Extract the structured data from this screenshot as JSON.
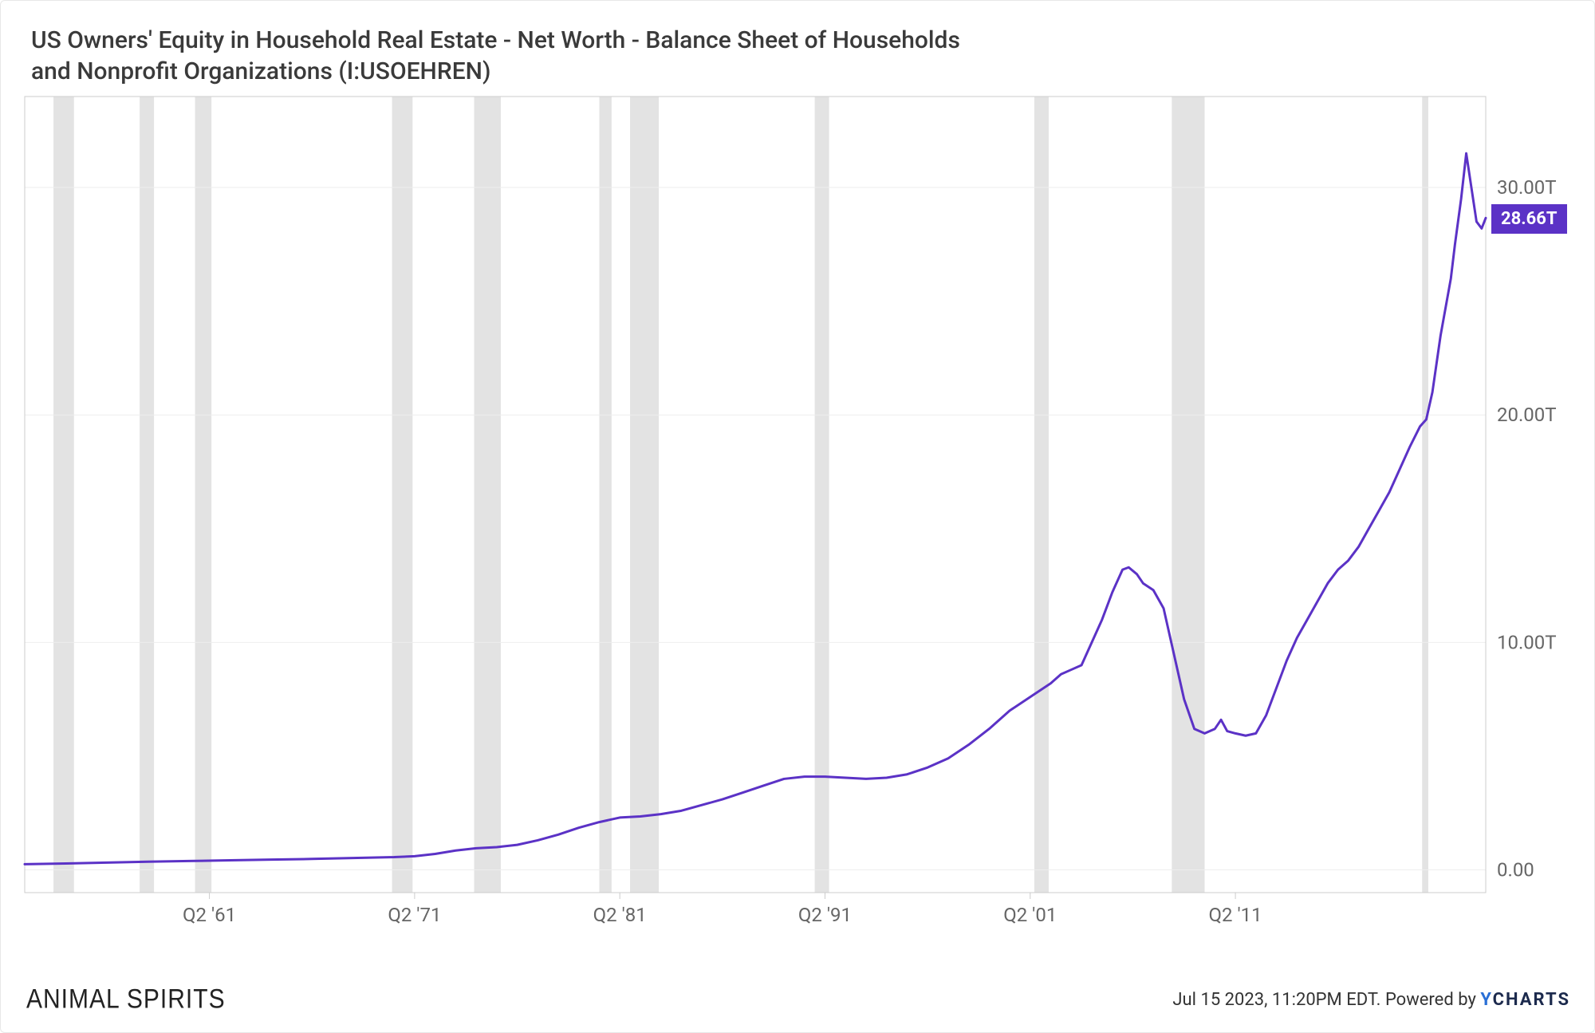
{
  "title": "US Owners' Equity in Household Real Estate - Net Worth - Balance Sheet of Households and Nonprofit Organizations (I:USOEHREN)",
  "footer": {
    "watermark": "ANIMAL SPIRITS",
    "timestamp": "Jul 15 2023, 11:20PM EDT.",
    "powered_by_prefix": "Powered by ",
    "powered_by_brand": "CHARTS"
  },
  "chart": {
    "type": "line",
    "background_color": "#ffffff",
    "grid_color": "#eeeeee",
    "border_color": "#cccccc",
    "recession_color": "#e3e3e3",
    "line_color": "#5b32c6",
    "line_width": 3,
    "tag_bg": "#5b32c6",
    "tag_text": "28.66T",
    "x": {
      "domain": [
        1952,
        2023.2
      ],
      "ticks": [
        1961,
        1971,
        1981,
        1991,
        2001,
        2011
      ],
      "tick_labels": [
        "Q2 '61",
        "Q2 '71",
        "Q2 '81",
        "Q2 '91",
        "Q2 '01",
        "Q2 '11"
      ],
      "label_fontsize": 24
    },
    "y": {
      "domain": [
        -1,
        34
      ],
      "ticks": [
        0,
        10,
        20,
        30
      ],
      "tick_labels": [
        "0.00",
        "10.00T",
        "20.00T",
        "30.00T"
      ],
      "label_fontsize": 24,
      "right_margin": 110
    },
    "recession_bands": [
      [
        1953.4,
        1954.4
      ],
      [
        1957.6,
        1958.3
      ],
      [
        1960.3,
        1961.1
      ],
      [
        1969.9,
        1970.9
      ],
      [
        1973.9,
        1975.2
      ],
      [
        1980.0,
        1980.6
      ],
      [
        1981.5,
        1982.9
      ],
      [
        1990.5,
        1991.2
      ],
      [
        2001.2,
        2001.9
      ],
      [
        2007.9,
        2009.5
      ],
      [
        2020.1,
        2020.4
      ]
    ],
    "series": [
      {
        "x": 1952.0,
        "y": 0.25
      },
      {
        "x": 1954.0,
        "y": 0.28
      },
      {
        "x": 1956.0,
        "y": 0.32
      },
      {
        "x": 1958.0,
        "y": 0.36
      },
      {
        "x": 1960.0,
        "y": 0.39
      },
      {
        "x": 1962.0,
        "y": 0.42
      },
      {
        "x": 1964.0,
        "y": 0.45
      },
      {
        "x": 1966.0,
        "y": 0.48
      },
      {
        "x": 1968.0,
        "y": 0.52
      },
      {
        "x": 1970.0,
        "y": 0.56
      },
      {
        "x": 1971.0,
        "y": 0.6
      },
      {
        "x": 1972.0,
        "y": 0.7
      },
      {
        "x": 1973.0,
        "y": 0.85
      },
      {
        "x": 1974.0,
        "y": 0.95
      },
      {
        "x": 1975.0,
        "y": 1.0
      },
      {
        "x": 1976.0,
        "y": 1.1
      },
      {
        "x": 1977.0,
        "y": 1.3
      },
      {
        "x": 1978.0,
        "y": 1.55
      },
      {
        "x": 1979.0,
        "y": 1.85
      },
      {
        "x": 1980.0,
        "y": 2.1
      },
      {
        "x": 1981.0,
        "y": 2.3
      },
      {
        "x": 1982.0,
        "y": 2.35
      },
      {
        "x": 1983.0,
        "y": 2.45
      },
      {
        "x": 1984.0,
        "y": 2.6
      },
      {
        "x": 1985.0,
        "y": 2.85
      },
      {
        "x": 1986.0,
        "y": 3.1
      },
      {
        "x": 1987.0,
        "y": 3.4
      },
      {
        "x": 1988.0,
        "y": 3.7
      },
      {
        "x": 1989.0,
        "y": 4.0
      },
      {
        "x": 1990.0,
        "y": 4.1
      },
      {
        "x": 1991.0,
        "y": 4.1
      },
      {
        "x": 1992.0,
        "y": 4.05
      },
      {
        "x": 1993.0,
        "y": 4.0
      },
      {
        "x": 1994.0,
        "y": 4.05
      },
      {
        "x": 1995.0,
        "y": 4.2
      },
      {
        "x": 1996.0,
        "y": 4.5
      },
      {
        "x": 1997.0,
        "y": 4.9
      },
      {
        "x": 1998.0,
        "y": 5.5
      },
      {
        "x": 1999.0,
        "y": 6.2
      },
      {
        "x": 2000.0,
        "y": 7.0
      },
      {
        "x": 2001.0,
        "y": 7.6
      },
      {
        "x": 2002.0,
        "y": 8.2
      },
      {
        "x": 2002.5,
        "y": 8.6
      },
      {
        "x": 2003.0,
        "y": 8.8
      },
      {
        "x": 2003.5,
        "y": 9.0
      },
      {
        "x": 2004.0,
        "y": 10.0
      },
      {
        "x": 2004.5,
        "y": 11.0
      },
      {
        "x": 2005.0,
        "y": 12.2
      },
      {
        "x": 2005.5,
        "y": 13.2
      },
      {
        "x": 2005.8,
        "y": 13.3
      },
      {
        "x": 2006.2,
        "y": 13.0
      },
      {
        "x": 2006.5,
        "y": 12.6
      },
      {
        "x": 2007.0,
        "y": 12.3
      },
      {
        "x": 2007.5,
        "y": 11.5
      },
      {
        "x": 2008.0,
        "y": 9.5
      },
      {
        "x": 2008.5,
        "y": 7.5
      },
      {
        "x": 2009.0,
        "y": 6.2
      },
      {
        "x": 2009.5,
        "y": 6.0
      },
      {
        "x": 2010.0,
        "y": 6.2
      },
      {
        "x": 2010.3,
        "y": 6.6
      },
      {
        "x": 2010.6,
        "y": 6.1
      },
      {
        "x": 2011.0,
        "y": 6.0
      },
      {
        "x": 2011.5,
        "y": 5.9
      },
      {
        "x": 2012.0,
        "y": 6.0
      },
      {
        "x": 2012.5,
        "y": 6.8
      },
      {
        "x": 2013.0,
        "y": 8.0
      },
      {
        "x": 2013.5,
        "y": 9.2
      },
      {
        "x": 2014.0,
        "y": 10.2
      },
      {
        "x": 2014.5,
        "y": 11.0
      },
      {
        "x": 2015.0,
        "y": 11.8
      },
      {
        "x": 2015.5,
        "y": 12.6
      },
      {
        "x": 2016.0,
        "y": 13.2
      },
      {
        "x": 2016.5,
        "y": 13.6
      },
      {
        "x": 2017.0,
        "y": 14.2
      },
      {
        "x": 2017.5,
        "y": 15.0
      },
      {
        "x": 2018.0,
        "y": 15.8
      },
      {
        "x": 2018.5,
        "y": 16.6
      },
      {
        "x": 2019.0,
        "y": 17.6
      },
      {
        "x": 2019.5,
        "y": 18.6
      },
      {
        "x": 2020.0,
        "y": 19.5
      },
      {
        "x": 2020.3,
        "y": 19.8
      },
      {
        "x": 2020.6,
        "y": 21.0
      },
      {
        "x": 2021.0,
        "y": 23.5
      },
      {
        "x": 2021.3,
        "y": 25.0
      },
      {
        "x": 2021.5,
        "y": 26.0
      },
      {
        "x": 2021.7,
        "y": 27.5
      },
      {
        "x": 2022.0,
        "y": 29.5
      },
      {
        "x": 2022.25,
        "y": 31.5
      },
      {
        "x": 2022.5,
        "y": 30.0
      },
      {
        "x": 2022.75,
        "y": 28.5
      },
      {
        "x": 2023.0,
        "y": 28.2
      },
      {
        "x": 2023.2,
        "y": 28.66
      }
    ]
  }
}
